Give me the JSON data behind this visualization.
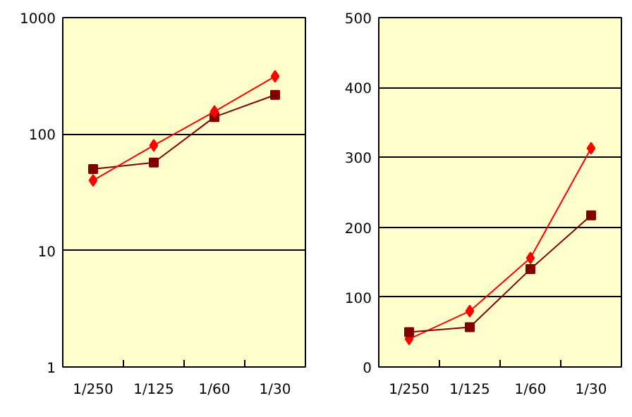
{
  "chart_data": [
    {
      "type": "line",
      "categories": [
        "1/250",
        "1/125",
        "1/60",
        "1/30"
      ],
      "log": true,
      "ylim": [
        1,
        1000
      ],
      "yticks": [
        1,
        10,
        100,
        1000
      ],
      "grid": "y",
      "series": [
        {
          "color": "#800000",
          "marker": "square",
          "values": [
            50,
            57,
            140,
            217
          ]
        },
        {
          "color": "#ff0000",
          "marker": "diamond",
          "values": [
            40,
            80,
            156,
            313
          ]
        }
      ]
    },
    {
      "type": "line",
      "categories": [
        "1/250",
        "1/125",
        "1/60",
        "1/30"
      ],
      "ylim": [
        0,
        500
      ],
      "yticks": [
        0,
        100,
        200,
        300,
        400,
        500
      ],
      "grid": "y",
      "series": [
        {
          "color": "#ff0000",
          "marker": "diamond",
          "values": [
            40,
            80,
            156,
            313
          ]
        },
        {
          "color": "#800000",
          "marker": "square",
          "values": [
            50,
            57,
            140,
            217
          ]
        }
      ]
    }
  ]
}
